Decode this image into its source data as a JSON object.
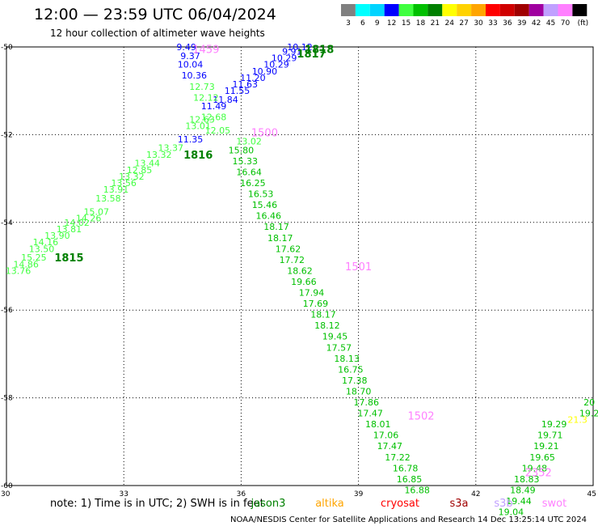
{
  "title": "12:00 — 23:59 UTC 06/04/2024",
  "subtitle": "12 hour collection of altimeter wave heights",
  "legend": {
    "colors": [
      "#808080",
      "#00ffff",
      "#00d4ff",
      "#0000ff",
      "#40ff40",
      "#00c000",
      "#008000",
      "#ffff00",
      "#ffd200",
      "#ffa500",
      "#ff0000",
      "#d00000",
      "#a00000",
      "#a000a0",
      "#c0a0ff",
      "#ff80ff",
      "#000000"
    ],
    "labels": [
      "3",
      "6",
      "9",
      "12",
      "15",
      "18",
      "21",
      "24",
      "27",
      "30",
      "33",
      "36",
      "39",
      "42",
      "45",
      "70",
      "(ft)"
    ]
  },
  "note": "note:  1) Time is in UTC; 2) SWH is in feet",
  "satellites": [
    {
      "name": "jason3",
      "color": "#008000"
    },
    {
      "name": "altika",
      "color": "#ffa500"
    },
    {
      "name": "cryosat",
      "color": "#ff0000"
    },
    {
      "name": "s3a",
      "color": "#a00000"
    },
    {
      "name": "s3b",
      "color": "#c0a0ff"
    },
    {
      "name": "swot",
      "color": "#ff80ff"
    }
  ],
  "footer": "NOAA/NESDIS Center for Satellite Applications and Research    14 Dec 13:25:14 UTC 2024",
  "chart_data": {
    "type": "scatter",
    "x_ticks": [
      "30",
      "33",
      "36",
      "39",
      "42",
      "45"
    ],
    "y_ticks": [
      "-50",
      "-52",
      "-54",
      "-56",
      "-58",
      "-60"
    ],
    "xlim": [
      30,
      45
    ],
    "ylim": [
      -60,
      -50
    ],
    "grid": true,
    "time_labels": [
      {
        "text": "1459",
        "x": 35.1,
        "y": -50.05,
        "color": "#ff80ff"
      },
      {
        "text": "1818",
        "x": 38.0,
        "y": -50.05,
        "color": "#008000"
      },
      {
        "text": "1817",
        "x": 37.8,
        "y": -50.15,
        "color": "#008000"
      },
      {
        "text": "1500",
        "x": 36.6,
        "y": -51.95,
        "color": "#ff80ff"
      },
      {
        "text": "1816",
        "x": 34.9,
        "y": -52.45,
        "color": "#008000"
      },
      {
        "text": "1815",
        "x": 31.6,
        "y": -54.8,
        "color": "#008000"
      },
      {
        "text": "1501",
        "x": 39.0,
        "y": -55.0,
        "color": "#ff80ff"
      },
      {
        "text": "1502",
        "x": 40.6,
        "y": -58.4,
        "color": "#ff80ff"
      },
      {
        "text": "2352",
        "x": 43.6,
        "y": -59.7,
        "color": "#ff80ff"
      }
    ],
    "series": [
      {
        "color": "#0000ff",
        "points": [
          {
            "x": 34.6,
            "y": -50.0,
            "v": "9.49"
          },
          {
            "x": 34.7,
            "y": -50.2,
            "v": "9.37"
          },
          {
            "x": 34.7,
            "y": -50.4,
            "v": "10.04"
          },
          {
            "x": 34.8,
            "y": -50.65,
            "v": "10.36"
          },
          {
            "x": 35.3,
            "y": -51.35,
            "v": "11.49"
          },
          {
            "x": 34.7,
            "y": -52.1,
            "v": "11.35"
          },
          {
            "x": 35.6,
            "y": -51.2,
            "v": "11.84"
          },
          {
            "x": 35.9,
            "y": -51.0,
            "v": "11.55"
          },
          {
            "x": 36.1,
            "y": -50.85,
            "v": "11.63"
          },
          {
            "x": 36.3,
            "y": -50.7,
            "v": "11.20"
          },
          {
            "x": 36.6,
            "y": -50.55,
            "v": "10.90"
          },
          {
            "x": 36.9,
            "y": -50.4,
            "v": "10.29"
          },
          {
            "x": 37.1,
            "y": -50.25,
            "v": "10.29"
          },
          {
            "x": 37.3,
            "y": -50.1,
            "v": "9.91"
          },
          {
            "x": 37.5,
            "y": -50.0,
            "v": "10.12"
          }
        ]
      },
      {
        "color": "#40ff40",
        "points": [
          {
            "x": 35.0,
            "y": -50.9,
            "v": "12.73"
          },
          {
            "x": 35.1,
            "y": -51.15,
            "v": "12.12"
          },
          {
            "x": 35.0,
            "y": -51.65,
            "v": "12.63"
          },
          {
            "x": 35.3,
            "y": -51.6,
            "v": "12.68"
          },
          {
            "x": 34.9,
            "y": -51.8,
            "v": "13.01"
          },
          {
            "x": 35.4,
            "y": -51.9,
            "v": "12.05"
          },
          {
            "x": 36.2,
            "y": -52.15,
            "v": "13.02"
          },
          {
            "x": 34.2,
            "y": -52.3,
            "v": "13.37"
          },
          {
            "x": 33.9,
            "y": -52.45,
            "v": "13.32"
          },
          {
            "x": 33.6,
            "y": -52.65,
            "v": "13.44"
          },
          {
            "x": 33.4,
            "y": -52.8,
            "v": "12.85"
          },
          {
            "x": 33.2,
            "y": -52.95,
            "v": "13.32"
          },
          {
            "x": 33.0,
            "y": -53.1,
            "v": "13.56"
          },
          {
            "x": 32.8,
            "y": -53.25,
            "v": "13.91"
          },
          {
            "x": 32.6,
            "y": -53.45,
            "v": "13.58"
          },
          {
            "x": 32.3,
            "y": -53.75,
            "v": "15.07"
          },
          {
            "x": 32.1,
            "y": -53.9,
            "v": "14.26"
          },
          {
            "x": 31.8,
            "y": -54.0,
            "v": "14.02"
          },
          {
            "x": 31.6,
            "y": -54.15,
            "v": "13.81"
          },
          {
            "x": 31.3,
            "y": -54.3,
            "v": "13.90"
          },
          {
            "x": 31.0,
            "y": -54.45,
            "v": "14.16"
          },
          {
            "x": 30.9,
            "y": -54.6,
            "v": "13.50"
          },
          {
            "x": 30.7,
            "y": -54.8,
            "v": "15.25"
          },
          {
            "x": 30.5,
            "y": -54.95,
            "v": "14.86"
          },
          {
            "x": 30.3,
            "y": -55.1,
            "v": "13.76"
          }
        ]
      },
      {
        "color": "#00c000",
        "points": [
          {
            "x": 36.0,
            "y": -52.35,
            "v": "15.80"
          },
          {
            "x": 36.1,
            "y": -52.6,
            "v": "15.33"
          },
          {
            "x": 36.2,
            "y": -52.85,
            "v": "16.64"
          },
          {
            "x": 36.3,
            "y": -53.1,
            "v": "16.25"
          },
          {
            "x": 36.5,
            "y": -53.35,
            "v": "16.53"
          },
          {
            "x": 36.6,
            "y": -53.6,
            "v": "15.46"
          },
          {
            "x": 36.7,
            "y": -53.85,
            "v": "16.46"
          },
          {
            "x": 36.9,
            "y": -54.1,
            "v": "18.17"
          },
          {
            "x": 37.0,
            "y": -54.35,
            "v": "18.17"
          },
          {
            "x": 37.2,
            "y": -54.6,
            "v": "17.62"
          },
          {
            "x": 37.3,
            "y": -54.85,
            "v": "17.72"
          },
          {
            "x": 37.5,
            "y": -55.1,
            "v": "18.62"
          },
          {
            "x": 37.6,
            "y": -55.35,
            "v": "19.66"
          },
          {
            "x": 37.8,
            "y": -55.6,
            "v": "17.94"
          },
          {
            "x": 37.9,
            "y": -55.85,
            "v": "17.69"
          },
          {
            "x": 38.1,
            "y": -56.1,
            "v": "18.17"
          },
          {
            "x": 38.2,
            "y": -56.35,
            "v": "18.12"
          },
          {
            "x": 38.4,
            "y": -56.6,
            "v": "19.45"
          },
          {
            "x": 38.5,
            "y": -56.85,
            "v": "17.57"
          },
          {
            "x": 38.7,
            "y": -57.1,
            "v": "18.13"
          },
          {
            "x": 38.8,
            "y": -57.35,
            "v": "16.75"
          },
          {
            "x": 38.9,
            "y": -57.6,
            "v": "17.38"
          },
          {
            "x": 39.0,
            "y": -57.85,
            "v": "18.70"
          },
          {
            "x": 39.2,
            "y": -58.1,
            "v": "17.86"
          },
          {
            "x": 39.3,
            "y": -58.35,
            "v": "17.47"
          },
          {
            "x": 39.5,
            "y": -58.6,
            "v": "18.01"
          },
          {
            "x": 39.7,
            "y": -58.85,
            "v": "17.06"
          },
          {
            "x": 39.8,
            "y": -59.1,
            "v": "17.47"
          },
          {
            "x": 40.0,
            "y": -59.35,
            "v": "17.22"
          },
          {
            "x": 40.2,
            "y": -59.6,
            "v": "16.78"
          },
          {
            "x": 40.3,
            "y": -59.85,
            "v": "16.85"
          },
          {
            "x": 40.5,
            "y": -60.1,
            "v": "16.88"
          },
          {
            "x": 44.0,
            "y": -58.6,
            "v": "19.29"
          },
          {
            "x": 43.9,
            "y": -58.85,
            "v": "19.71"
          },
          {
            "x": 43.8,
            "y": -59.1,
            "v": "19.21"
          },
          {
            "x": 43.7,
            "y": -59.35,
            "v": "19.65"
          },
          {
            "x": 43.5,
            "y": -59.6,
            "v": "19.48"
          },
          {
            "x": 43.3,
            "y": -59.85,
            "v": "18.83"
          },
          {
            "x": 43.2,
            "y": -60.1,
            "v": "18.49"
          },
          {
            "x": 43.1,
            "y": -60.35,
            "v": "19.44"
          },
          {
            "x": 42.9,
            "y": -60.6,
            "v": "19.04"
          },
          {
            "x": 44.9,
            "y": -58.1,
            "v": "20"
          },
          {
            "x": 44.9,
            "y": -58.35,
            "v": "19.2"
          }
        ]
      },
      {
        "color": "#ffff00",
        "points": [
          {
            "x": 44.6,
            "y": -58.5,
            "v": "21.3"
          }
        ]
      }
    ]
  }
}
